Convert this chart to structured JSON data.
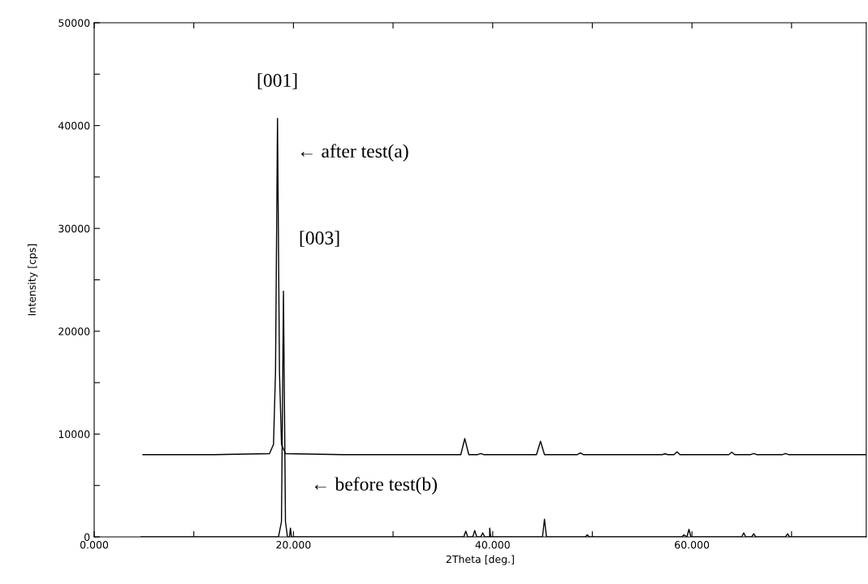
{
  "chart_data": {
    "type": "line",
    "xlabel": "2Theta [deg.]",
    "ylabel": "Intensity [cps]",
    "xlim": [
      0,
      77.5
    ],
    "ylim": [
      0,
      50000
    ],
    "xticks": [
      {
        "value": 0,
        "label": "0.000"
      },
      {
        "value": 10,
        "label": null
      },
      {
        "value": 20,
        "label": "20.000"
      },
      {
        "value": 30,
        "label": null
      },
      {
        "value": 40,
        "label": "40.000"
      },
      {
        "value": 50,
        "label": null
      },
      {
        "value": 60,
        "label": "60.000"
      },
      {
        "value": 70,
        "label": null
      }
    ],
    "yticks": [
      0,
      {
        "value": 5000,
        "label": null
      },
      10000,
      {
        "value": 15000,
        "label": null
      },
      20000,
      {
        "value": 25000,
        "label": null
      },
      30000,
      {
        "value": 35000,
        "label": null
      },
      40000,
      {
        "value": 45000,
        "label": null
      },
      50000
    ],
    "grid": false,
    "legend": false,
    "marker": "none",
    "line_style": "solid",
    "series": [
      {
        "color": "#000000",
        "x": [
          4.9,
          12,
          17.6,
          18.0,
          18.2,
          18.4,
          18.6,
          18.8,
          19.2,
          25,
          36.8,
          37.2,
          37.6,
          38.5,
          38.8,
          39.1,
          44.4,
          44.8,
          45.2,
          48.5,
          48.8,
          49.1,
          57.0,
          57.3,
          57.6,
          58.2,
          58.5,
          58.8,
          63.7,
          64.0,
          64.3,
          65.9,
          66.2,
          66.5,
          69.1,
          69.4,
          69.7,
          77.5
        ],
        "values": [
          8000,
          8000,
          8100,
          9000,
          16000,
          40700,
          16000,
          9000,
          8100,
          8000,
          8000,
          9560,
          8000,
          8000,
          8110,
          8000,
          8000,
          9300,
          8000,
          8000,
          8160,
          8000,
          8000,
          8080,
          8000,
          8000,
          8270,
          8000,
          8000,
          8230,
          8000,
          8000,
          8110,
          8000,
          8000,
          8110,
          8000,
          8000
        ]
      },
      {
        "color": "#000000",
        "x": [
          4.7,
          18.5,
          18.8,
          19.0,
          19.2,
          19.4,
          19.6,
          19.7,
          19.8,
          37.1,
          37.3,
          37.5,
          38.0,
          38.2,
          38.4,
          38.8,
          39.0,
          39.2,
          39.7,
          39.7,
          39.8,
          45.0,
          45.2,
          45.4,
          49.3,
          49.5,
          49.7,
          59.0,
          59.2,
          59.5,
          59.7,
          59.9,
          65.0,
          65.2,
          65.4,
          66.0,
          66.2,
          66.4,
          69.4,
          69.6,
          69.8,
          77.5
        ],
        "values": [
          0,
          0,
          1500,
          23900,
          1500,
          0,
          0,
          860,
          0,
          0,
          560,
          0,
          0,
          620,
          0,
          0,
          400,
          0,
          0,
          850,
          0,
          0,
          1720,
          0,
          0,
          190,
          0,
          0,
          200,
          0,
          730,
          0,
          0,
          390,
          0,
          0,
          300,
          0,
          0,
          300,
          0,
          0
        ]
      }
    ],
    "annotations": [
      "[001]",
      "← after test(a)",
      "[003]",
      "← before test(b)"
    ]
  }
}
